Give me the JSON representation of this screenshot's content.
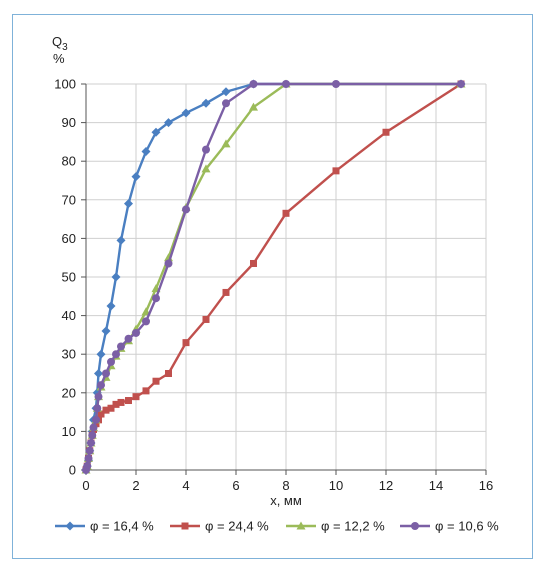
{
  "chart_data": {
    "type": "line",
    "ylabel": "Q",
    "ylabel_sub": "3",
    "yunit": "%",
    "xlabel": "x, мм",
    "xlim": [
      0,
      16
    ],
    "ylim": [
      0,
      100
    ],
    "xticks": [
      "0",
      "2",
      "4",
      "6",
      "8",
      "10",
      "12",
      "14",
      "16"
    ],
    "yticks": [
      "0",
      "10",
      "20",
      "30",
      "40",
      "50",
      "60",
      "70",
      "80",
      "90",
      "100"
    ],
    "grid": true,
    "legend_position": "bottom",
    "series": [
      {
        "name": "φ = 16,4 %",
        "color": "#4a7fc1",
        "marker": "diamond",
        "points": [
          [
            0,
            0
          ],
          [
            0.05,
            1
          ],
          [
            0.1,
            2.5
          ],
          [
            0.15,
            5
          ],
          [
            0.2,
            7
          ],
          [
            0.25,
            10
          ],
          [
            0.3,
            13
          ],
          [
            0.4,
            16
          ],
          [
            0.45,
            20
          ],
          [
            0.5,
            25
          ],
          [
            0.6,
            30
          ],
          [
            0.8,
            36
          ],
          [
            1,
            42.5
          ],
          [
            1.2,
            50
          ],
          [
            1.4,
            59.5
          ],
          [
            1.7,
            69
          ],
          [
            2,
            76
          ],
          [
            2.4,
            82.5
          ],
          [
            2.8,
            87.5
          ],
          [
            3.3,
            90
          ],
          [
            4,
            92.5
          ],
          [
            4.8,
            95
          ],
          [
            5.6,
            98
          ],
          [
            6.7,
            100
          ],
          [
            15,
            100
          ]
        ]
      },
      {
        "name": "φ = 24,4 %",
        "color": "#c0504d",
        "marker": "square",
        "points": [
          [
            0,
            0
          ],
          [
            0.05,
            1
          ],
          [
            0.1,
            3
          ],
          [
            0.15,
            5
          ],
          [
            0.2,
            7
          ],
          [
            0.25,
            9
          ],
          [
            0.3,
            10.5
          ],
          [
            0.4,
            12
          ],
          [
            0.5,
            13
          ],
          [
            0.6,
            14.5
          ],
          [
            0.8,
            15.5
          ],
          [
            1,
            16
          ],
          [
            1.2,
            17
          ],
          [
            1.4,
            17.5
          ],
          [
            1.7,
            18
          ],
          [
            2,
            19
          ],
          [
            2.4,
            20.5
          ],
          [
            2.8,
            23
          ],
          [
            3.3,
            25
          ],
          [
            4,
            33
          ],
          [
            4.8,
            39
          ],
          [
            5.6,
            46
          ],
          [
            6.7,
            53.5
          ],
          [
            8,
            66.5
          ],
          [
            10,
            77.5
          ],
          [
            12,
            87.5
          ],
          [
            15,
            100
          ]
        ]
      },
      {
        "name": "φ = 12,2 %",
        "color": "#9bbb59",
        "marker": "triangle",
        "points": [
          [
            0,
            0
          ],
          [
            0.05,
            1
          ],
          [
            0.1,
            3
          ],
          [
            0.15,
            5
          ],
          [
            0.2,
            7
          ],
          [
            0.25,
            9
          ],
          [
            0.3,
            11
          ],
          [
            0.4,
            13
          ],
          [
            0.45,
            16
          ],
          [
            0.5,
            19
          ],
          [
            0.6,
            21.5
          ],
          [
            0.8,
            24
          ],
          [
            1,
            27
          ],
          [
            1.2,
            29.5
          ],
          [
            1.4,
            31.5
          ],
          [
            1.7,
            33.5
          ],
          [
            2,
            36.5
          ],
          [
            2.4,
            41
          ],
          [
            2.8,
            47
          ],
          [
            3.3,
            55
          ],
          [
            4,
            68
          ],
          [
            4.8,
            78
          ],
          [
            5.6,
            84.5
          ],
          [
            6.7,
            94
          ],
          [
            8,
            100
          ],
          [
            15,
            100
          ]
        ]
      },
      {
        "name": "φ = 10,6 %",
        "color": "#7b5fa5",
        "marker": "circle",
        "points": [
          [
            0,
            0
          ],
          [
            0.05,
            1
          ],
          [
            0.1,
            3
          ],
          [
            0.15,
            5
          ],
          [
            0.2,
            7
          ],
          [
            0.25,
            9
          ],
          [
            0.3,
            11
          ],
          [
            0.4,
            13
          ],
          [
            0.45,
            16
          ],
          [
            0.5,
            19
          ],
          [
            0.6,
            22
          ],
          [
            0.8,
            25
          ],
          [
            1,
            28
          ],
          [
            1.2,
            30
          ],
          [
            1.4,
            32
          ],
          [
            1.7,
            34
          ],
          [
            2,
            35.5
          ],
          [
            2.4,
            38.5
          ],
          [
            2.8,
            44.5
          ],
          [
            3.3,
            53.5
          ],
          [
            4,
            67.5
          ],
          [
            4.8,
            83
          ],
          [
            5.6,
            95
          ],
          [
            6.7,
            100
          ],
          [
            8,
            100
          ],
          [
            10,
            100
          ],
          [
            15,
            100
          ]
        ]
      }
    ]
  }
}
